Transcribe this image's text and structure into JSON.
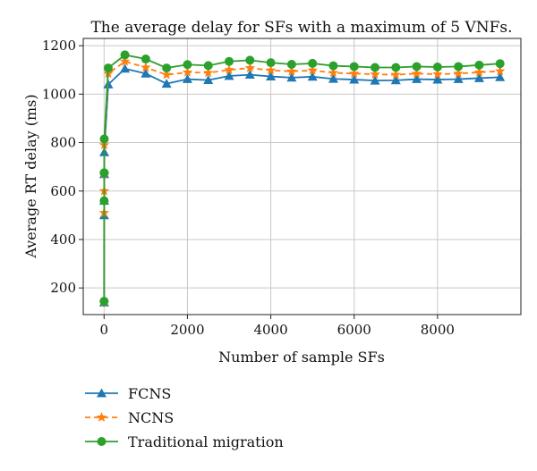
{
  "chart_data": {
    "type": "line",
    "title": "The average delay for SFs with a maximum of 5 VNFs.",
    "xlabel": "Number of sample SFs",
    "ylabel": "Average RT delay (ms)",
    "xlim": [
      -500,
      10000
    ],
    "ylim": [
      90,
      1230
    ],
    "xticks": [
      0,
      2000,
      4000,
      6000,
      8000
    ],
    "yticks": [
      200,
      400,
      600,
      800,
      1000,
      1200
    ],
    "grid": true,
    "legend_position": "below-left",
    "x": [
      1,
      2,
      3,
      4,
      5,
      100,
      500,
      1000,
      1500,
      2000,
      2500,
      3000,
      3500,
      4000,
      4500,
      5000,
      5500,
      6000,
      6500,
      7000,
      7500,
      8000,
      8500,
      9000,
      9500
    ],
    "series": [
      {
        "name": "FCNS",
        "color": "#1f77b4",
        "marker": "triangle",
        "linestyle": "solid",
        "values": [
          140,
          500,
          560,
          670,
          760,
          1040,
          1105,
          1085,
          1043,
          1062,
          1058,
          1075,
          1080,
          1073,
          1068,
          1072,
          1063,
          1060,
          1056,
          1057,
          1062,
          1060,
          1062,
          1066,
          1070
        ]
      },
      {
        "name": "NCNS",
        "color": "#ff7f0e",
        "marker": "star",
        "linestyle": "dashed",
        "values": [
          140,
          510,
          600,
          670,
          790,
          1085,
          1135,
          1110,
          1080,
          1090,
          1088,
          1100,
          1108,
          1098,
          1094,
          1098,
          1088,
          1085,
          1082,
          1080,
          1085,
          1082,
          1085,
          1090,
          1095
        ]
      },
      {
        "name": "Traditional migration",
        "color": "#2ca02c",
        "marker": "circle",
        "linestyle": "solid",
        "values": [
          145,
          560,
          675,
          675,
          815,
          1108,
          1162,
          1145,
          1108,
          1122,
          1118,
          1135,
          1140,
          1130,
          1123,
          1127,
          1117,
          1114,
          1110,
          1110,
          1114,
          1112,
          1114,
          1120,
          1126
        ]
      }
    ]
  }
}
